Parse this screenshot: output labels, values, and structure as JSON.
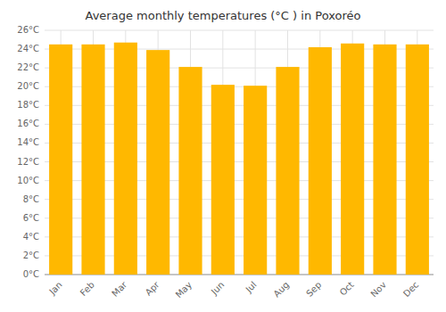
{
  "chart_data": {
    "type": "bar",
    "title": "Average monthly temperatures (°C ) in Poxoréo",
    "categories": [
      "Jan",
      "Feb",
      "Mar",
      "Apr",
      "May",
      "Jun",
      "Jul",
      "Aug",
      "Sep",
      "Oct",
      "Nov",
      "Dec"
    ],
    "values": [
      24.5,
      24.5,
      24.7,
      23.9,
      22.1,
      20.2,
      20.1,
      22.1,
      24.2,
      24.6,
      24.5,
      24.5
    ],
    "color": "#FFB800",
    "ylim": [
      0,
      26
    ],
    "yticks": [
      {
        "value": 0,
        "label": "0°C"
      },
      {
        "value": 2,
        "label": "2°C"
      },
      {
        "value": 4,
        "label": "4°C"
      },
      {
        "value": 6,
        "label": "6°C"
      },
      {
        "value": 8,
        "label": "8°C"
      },
      {
        "value": 10,
        "label": "10°C"
      },
      {
        "value": 12,
        "label": "12°C"
      },
      {
        "value": 14,
        "label": "14°C"
      },
      {
        "value": 16,
        "label": "16°C"
      },
      {
        "value": 18,
        "label": "18°C"
      },
      {
        "value": 20,
        "label": "20°C"
      },
      {
        "value": 22,
        "label": "22°C"
      },
      {
        "value": 24,
        "label": "24°C"
      },
      {
        "value": 26,
        "label": "26°C"
      }
    ],
    "grid": true
  }
}
